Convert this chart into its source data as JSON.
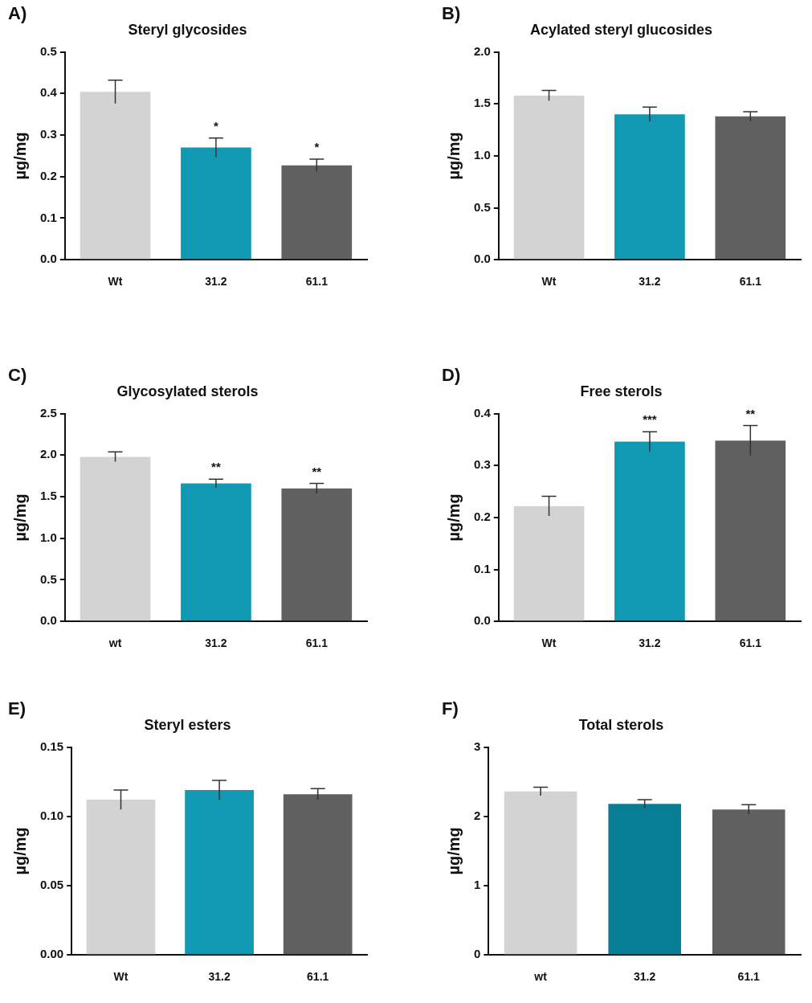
{
  "chart_data": [
    {
      "type": "bar",
      "title": "Steryl glycosides",
      "ylabel": "µg/mg",
      "categories": [
        "Wt",
        "31.2",
        "61.1"
      ],
      "values": [
        0.404,
        0.27,
        0.227
      ],
      "errors": [
        0.028,
        0.023,
        0.015
      ],
      "colors": [
        "#d3d3d3",
        "#1199b3",
        "#606060"
      ],
      "ylim": [
        0,
        0.5
      ],
      "yticks": [
        {
          "value": 0,
          "label": "0.0"
        },
        0.1,
        0.2,
        0.3,
        0.4,
        0.5
      ],
      "annotations": [
        "A)",
        {
          "text": "*",
          "x": "31.2",
          "y": 0.27
        },
        {
          "text": "*",
          "x": "61.1",
          "y": 0.227
        }
      ]
    },
    {
      "type": "bar",
      "title": "Acylated steryl glucosides",
      "ylabel": "µg/mg",
      "categories": [
        "Wt",
        "31.2",
        "61.1"
      ],
      "values": [
        1.58,
        1.4,
        1.38
      ],
      "errors": [
        0.05,
        0.07,
        0.045
      ],
      "colors": [
        "#d3d3d3",
        "#1199b3",
        "#606060"
      ],
      "ylim": [
        0,
        2
      ],
      "yticks": [
        {
          "value": 0,
          "label": "0.0"
        },
        0.5,
        {
          "value": 1,
          "label": "1.0"
        },
        1.5,
        {
          "value": 2,
          "label": "2.0"
        }
      ],
      "annotations": [
        "B)"
      ]
    },
    {
      "type": "bar",
      "title": "Glycosylated sterols",
      "ylabel": "µg/mg",
      "categories": [
        "wt",
        "31.2",
        "61.1"
      ],
      "values": [
        1.98,
        1.66,
        1.6
      ],
      "errors": [
        0.06,
        0.05,
        0.06
      ],
      "colors": [
        "#d3d3d3",
        "#1199b3",
        "#606060"
      ],
      "ylim": [
        0,
        2.5
      ],
      "yticks": [
        {
          "value": 0,
          "label": "0.0"
        },
        0.5,
        {
          "value": 1,
          "label": "1.0"
        },
        1.5,
        {
          "value": 2,
          "label": "2.0"
        },
        2.5
      ],
      "annotations": [
        "C)",
        {
          "text": "**",
          "x": "31.2",
          "y": 1.66
        },
        {
          "text": "**",
          "x": "61.1",
          "y": 1.6
        }
      ]
    },
    {
      "type": "bar",
      "title": "Free sterols",
      "ylabel": "µg/mg",
      "categories": [
        "Wt",
        "31.2",
        "61.1"
      ],
      "values": [
        0.222,
        0.346,
        0.348
      ],
      "errors": [
        0.019,
        0.019,
        0.029
      ],
      "colors": [
        "#d3d3d3",
        "#1199b3",
        "#606060"
      ],
      "ylim": [
        0,
        0.4
      ],
      "yticks": [
        {
          "value": 0,
          "label": "0.0"
        },
        0.1,
        0.2,
        0.3,
        0.4
      ],
      "annotations": [
        "D)",
        {
          "text": "***",
          "x": "31.2",
          "y": 0.346
        },
        {
          "text": "**",
          "x": "61.1",
          "y": 0.348
        }
      ]
    },
    {
      "type": "bar",
      "title": "Steryl esters",
      "ylabel": "µg/mg",
      "categories": [
        "Wt",
        "31.2",
        "61.1"
      ],
      "values": [
        0.112,
        0.119,
        0.116
      ],
      "errors": [
        0.007,
        0.007,
        0.004
      ],
      "colors": [
        "#d3d3d3",
        "#1199b3",
        "#606060"
      ],
      "ylim": [
        0,
        0.15
      ],
      "yticks": [
        {
          "value": 0,
          "label": "0.00"
        },
        0.05,
        {
          "value": 0.1,
          "label": "0.10"
        },
        0.15
      ],
      "annotations": [
        "E)"
      ]
    },
    {
      "type": "bar",
      "title": "Total sterols",
      "ylabel": "µg/mg",
      "categories": [
        "wt",
        "31.2",
        "61.1"
      ],
      "values": [
        2.36,
        2.18,
        2.1
      ],
      "errors": [
        0.06,
        0.06,
        0.07
      ],
      "colors": [
        "#d3d3d3",
        "#087d96",
        "#606060"
      ],
      "ylim": [
        0,
        3
      ],
      "yticks": [
        0,
        1,
        2,
        3
      ],
      "annotations": [
        "F)"
      ]
    }
  ]
}
